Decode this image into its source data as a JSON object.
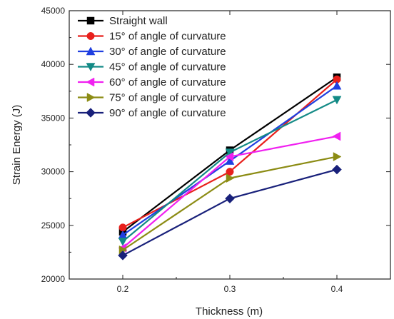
{
  "chart_data": {
    "type": "line",
    "xlabel": "Thickness (m)",
    "ylabel": "Strain Energy (J)",
    "x": [
      0.2,
      0.3,
      0.4
    ],
    "x_ticks": [
      "0.2",
      "0.3",
      "0.4"
    ],
    "xlim": [
      0.15,
      0.45
    ],
    "ylim": [
      20000,
      45000
    ],
    "y_ticks": [
      "20000",
      "25000",
      "30000",
      "35000",
      "40000",
      "45000"
    ],
    "grid": false,
    "legend_position": "top-left",
    "series": [
      {
        "name": "Straight wall",
        "color": "#000000",
        "marker": "square",
        "values": [
          24400,
          32000,
          38800
        ]
      },
      {
        "name": "15° of angle of curvature",
        "color": "#e8201c",
        "marker": "circle",
        "values": [
          24800,
          30000,
          38600
        ]
      },
      {
        "name": "30° of angle of curvature",
        "color": "#1f3fe0",
        "marker": "triangle-up",
        "values": [
          24100,
          31000,
          38000
        ]
      },
      {
        "name": "45° of angle of curvature",
        "color": "#138a86",
        "marker": "triangle-down",
        "values": [
          23500,
          31800,
          36700
        ]
      },
      {
        "name": "60° of angle of curvature",
        "color": "#f020f0",
        "marker": "triangle-left",
        "values": [
          22900,
          31400,
          33300
        ]
      },
      {
        "name": "75° of angle of curvature",
        "color": "#8c8c14",
        "marker": "triangle-right",
        "values": [
          22700,
          29400,
          31400
        ]
      },
      {
        "name": "90° of angle of curvature",
        "color": "#18207a",
        "marker": "diamond",
        "values": [
          22200,
          27500,
          30200
        ]
      }
    ]
  }
}
